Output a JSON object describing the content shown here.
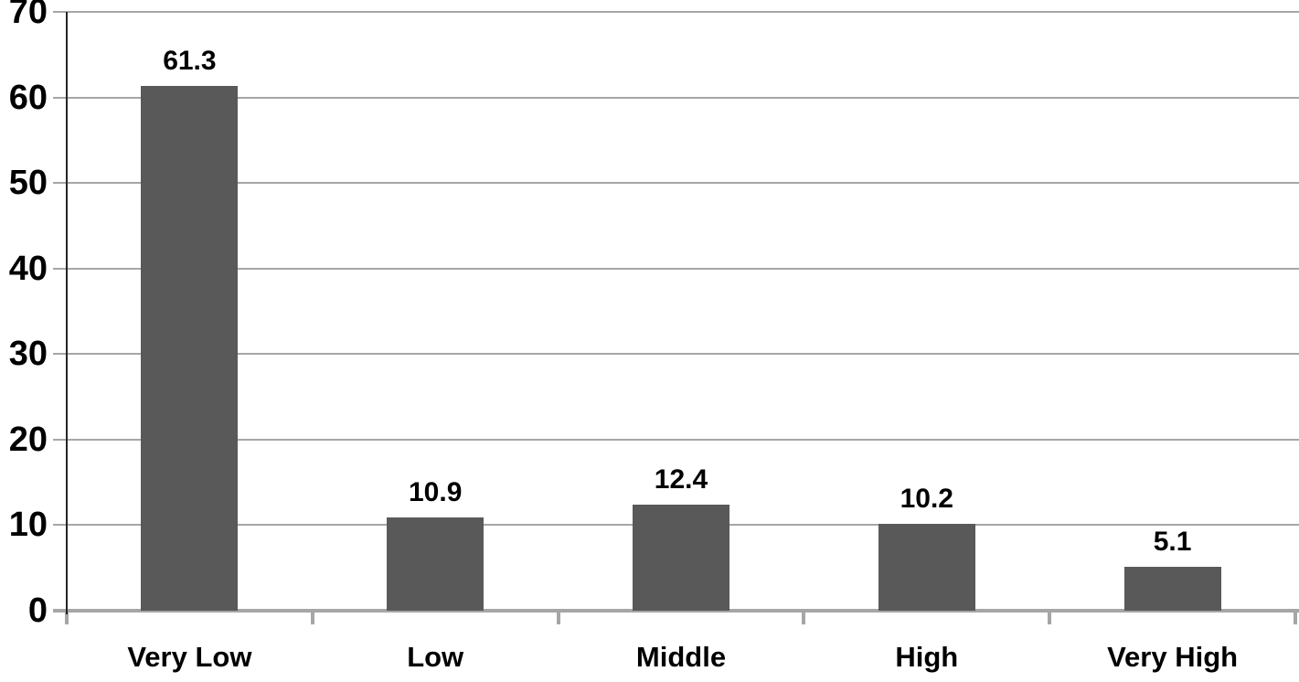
{
  "chart_data": {
    "type": "bar",
    "title": "",
    "xlabel": "",
    "ylabel": "",
    "categories": [
      "Very Low",
      "Low",
      "Middle",
      "High",
      "Very High"
    ],
    "values": [
      61.3,
      10.9,
      12.4,
      10.2,
      5.1
    ],
    "value_labels": [
      "61.3",
      "10.9",
      "12.4",
      "10.2",
      "5.1"
    ],
    "ylim": [
      0,
      70
    ],
    "yticks": [
      0,
      10,
      20,
      30,
      40,
      50,
      60,
      70
    ],
    "ytick_labels": [
      "0",
      "10",
      "20",
      "30",
      "40",
      "50",
      "60",
      "70"
    ],
    "grid": true,
    "legend_position": "none",
    "colors": {
      "bar": "#595959",
      "gridline": "#a6a6a6",
      "x_axis_line": "#a6a6a6",
      "y_axis_line": "#262626",
      "tick": "#a6a6a6",
      "label_text": "#000000",
      "background": "#ffffff"
    }
  }
}
